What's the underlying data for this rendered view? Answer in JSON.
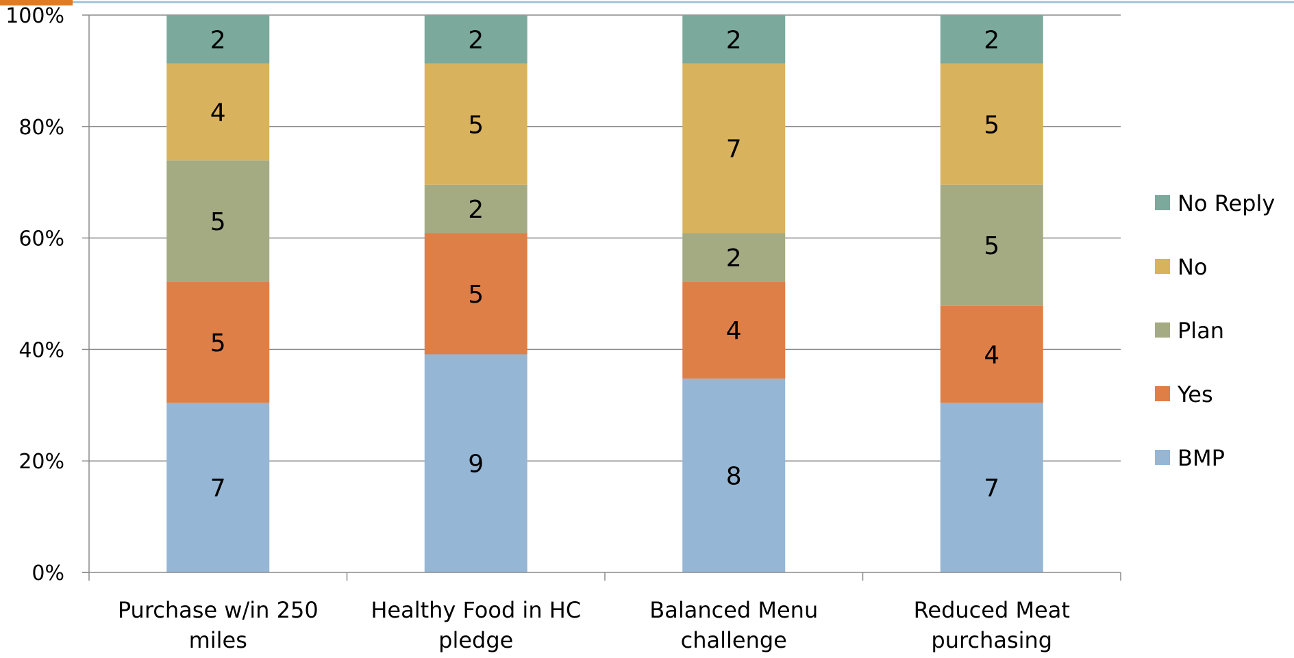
{
  "chart_data": {
    "type": "bar",
    "stacked": true,
    "normalized": true,
    "categories": [
      [
        "Purchase w/in 250",
        "miles"
      ],
      [
        "Healthy Food in HC",
        "pledge"
      ],
      [
        "Balanced Menu",
        "challenge"
      ],
      [
        "Reduced Meat",
        "purchasing"
      ]
    ],
    "series": [
      {
        "name": "BMP",
        "color": "#95b6d4",
        "values": [
          7,
          9,
          8,
          7
        ]
      },
      {
        "name": "Yes",
        "color": "#df7f48",
        "values": [
          5,
          5,
          4,
          4
        ]
      },
      {
        "name": "Plan",
        "color": "#a4ab82",
        "values": [
          5,
          2,
          2,
          5
        ]
      },
      {
        "name": "No",
        "color": "#d9b25e",
        "values": [
          4,
          5,
          7,
          5
        ]
      },
      {
        "name": "No Reply",
        "color": "#7ba99c",
        "values": [
          2,
          2,
          2,
          2
        ]
      }
    ],
    "y_ticks": [
      "0%",
      "20%",
      "40%",
      "60%",
      "80%",
      "100%"
    ],
    "ylim": [
      0,
      1
    ],
    "grid": true,
    "legend_position": "right"
  },
  "colors": {
    "top_rule": "#9cc3d6",
    "corner_accent": "#e07b22",
    "gridline": "#8a8a8a"
  }
}
